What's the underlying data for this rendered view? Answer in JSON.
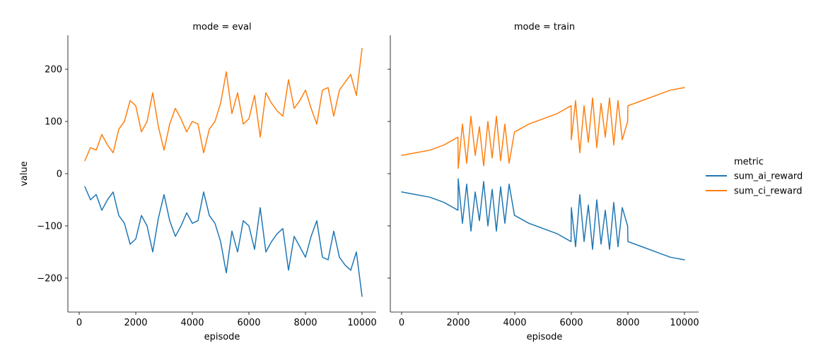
{
  "chart_data": {
    "type": "line",
    "ylabel": "value",
    "y_ticks": [
      -200,
      -100,
      0,
      100,
      200
    ],
    "ylim": [
      -265,
      265
    ],
    "legend": {
      "title": "metric",
      "placement": "right",
      "entries": [
        {
          "name": "sum_ai_reward",
          "color": "#1f77b4"
        },
        {
          "name": "sum_ci_reward",
          "color": "#ff7f0e"
        }
      ]
    },
    "facets": [
      {
        "title": "mode = eval",
        "xlabel": "episode",
        "xlim": [
          -400,
          10500
        ],
        "x_ticks": [
          0,
          2000,
          4000,
          6000,
          8000,
          10000
        ],
        "y_tick_labels_visible": true,
        "series": [
          {
            "name": "sum_ai_reward",
            "x": [
              200,
              400,
              600,
              800,
              1000,
              1200,
              1400,
              1600,
              1800,
              2000,
              2200,
              2400,
              2600,
              2800,
              3000,
              3200,
              3400,
              3600,
              3800,
              4000,
              4200,
              4400,
              4600,
              4800,
              5000,
              5200,
              5400,
              5600,
              5800,
              6000,
              6200,
              6400,
              6600,
              6800,
              7000,
              7200,
              7400,
              7600,
              7800,
              8000,
              8200,
              8400,
              8600,
              8800,
              9000,
              9200,
              9400,
              9600,
              9800,
              10000
            ],
            "values": [
              -25,
              -50,
              -40,
              -70,
              -50,
              -35,
              -80,
              -95,
              -135,
              -125,
              -80,
              -100,
              -150,
              -85,
              -40,
              -90,
              -120,
              -100,
              -75,
              -95,
              -90,
              -35,
              -80,
              -95,
              -130,
              -190,
              -110,
              -150,
              -90,
              -100,
              -145,
              -65,
              -150,
              -130,
              -115,
              -105,
              -185,
              -120,
              -140,
              -160,
              -120,
              -90,
              -160,
              -165,
              -110,
              -160,
              -175,
              -185,
              -150,
              -235
            ]
          },
          {
            "name": "sum_ci_reward",
            "x": [
              200,
              400,
              600,
              800,
              1000,
              1200,
              1400,
              1600,
              1800,
              2000,
              2200,
              2400,
              2600,
              2800,
              3000,
              3200,
              3400,
              3600,
              3800,
              4000,
              4200,
              4400,
              4600,
              4800,
              5000,
              5200,
              5400,
              5600,
              5800,
              6000,
              6200,
              6400,
              6600,
              6800,
              7000,
              7200,
              7400,
              7600,
              7800,
              8000,
              8200,
              8400,
              8600,
              8800,
              9000,
              9200,
              9400,
              9600,
              9800,
              10000
            ],
            "values": [
              25,
              50,
              45,
              75,
              55,
              40,
              85,
              100,
              140,
              130,
              80,
              100,
              155,
              90,
              45,
              95,
              125,
              105,
              80,
              100,
              95,
              40,
              85,
              100,
              135,
              195,
              115,
              155,
              95,
              105,
              150,
              70,
              155,
              135,
              120,
              110,
              180,
              125,
              140,
              160,
              125,
              95,
              160,
              165,
              110,
              160,
              175,
              190,
              150,
              240
            ]
          }
        ]
      },
      {
        "title": "mode = train",
        "xlabel": "episode",
        "xlim": [
          -400,
          10500
        ],
        "x_ticks": [
          0,
          2000,
          4000,
          6000,
          8000,
          10000
        ],
        "y_tick_labels_visible": false,
        "series": [
          {
            "name": "sum_ai_reward",
            "x": [
              0,
              500,
              1000,
              1500,
              1990,
              2000,
              2150,
              2300,
              2450,
              2600,
              2750,
              2900,
              3050,
              3200,
              3350,
              3500,
              3650,
              3800,
              3990,
              4000,
              4500,
              5000,
              5500,
              5990,
              6000,
              6150,
              6300,
              6450,
              6600,
              6750,
              6900,
              7050,
              7200,
              7350,
              7500,
              7650,
              7800,
              7990,
              8000,
              8500,
              9000,
              9500,
              10000
            ],
            "values": [
              -35,
              -40,
              -45,
              -55,
              -70,
              -10,
              -95,
              -20,
              -110,
              -35,
              -90,
              -15,
              -100,
              -30,
              -110,
              -25,
              -95,
              -20,
              -80,
              -80,
              -95,
              -105,
              -115,
              -130,
              -65,
              -140,
              -40,
              -130,
              -60,
              -145,
              -50,
              -135,
              -70,
              -145,
              -55,
              -140,
              -65,
              -100,
              -130,
              -140,
              -150,
              -160,
              -165
            ]
          },
          {
            "name": "sum_ci_reward",
            "x": [
              0,
              500,
              1000,
              1500,
              1990,
              2000,
              2150,
              2300,
              2450,
              2600,
              2750,
              2900,
              3050,
              3200,
              3350,
              3500,
              3650,
              3800,
              3990,
              4000,
              4500,
              5000,
              5500,
              5990,
              6000,
              6150,
              6300,
              6450,
              6600,
              6750,
              6900,
              7050,
              7200,
              7350,
              7500,
              7650,
              7800,
              7990,
              8000,
              8500,
              9000,
              9500,
              10000
            ],
            "values": [
              35,
              40,
              45,
              55,
              70,
              10,
              95,
              20,
              110,
              35,
              90,
              15,
              100,
              30,
              110,
              25,
              95,
              20,
              80,
              80,
              95,
              105,
              115,
              130,
              65,
              140,
              40,
              130,
              60,
              145,
              50,
              135,
              70,
              145,
              55,
              140,
              65,
              100,
              130,
              140,
              150,
              160,
              165
            ]
          }
        ]
      }
    ]
  }
}
